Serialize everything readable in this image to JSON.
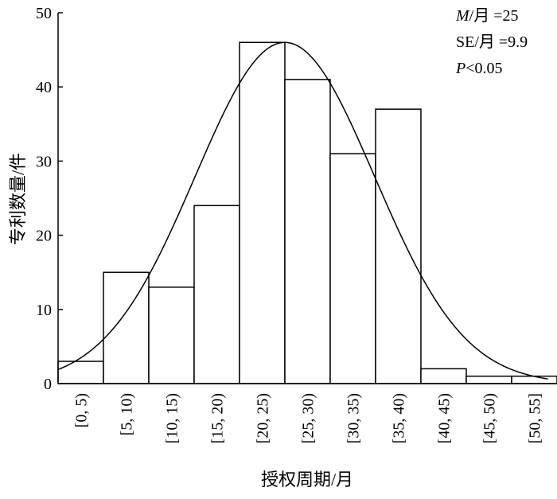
{
  "chart_data": {
    "type": "bar",
    "categories": [
      "[0, 5)",
      "[5, 10)",
      "[10, 15)",
      "[15, 20)",
      "[20, 25)",
      "[25, 30)",
      "[30, 35)",
      "[35, 40)",
      "[40, 45)",
      "[45, 50)",
      "[50, 55]"
    ],
    "values": [
      3,
      15,
      13,
      24,
      46,
      41,
      31,
      37,
      2,
      1,
      1
    ],
    "xlabel": "授权周期/月",
    "ylabel": "专利数量/件",
    "ylim": [
      0,
      50
    ],
    "yticks": [
      0,
      10,
      20,
      30,
      40,
      50
    ],
    "grid": false,
    "legend": "none",
    "overlay": {
      "type": "normal-curve",
      "mean": 25,
      "se": 9.9,
      "peak": 46
    },
    "annotations": [
      {
        "italic": "M",
        "text": "/月 =25"
      },
      {
        "italic": "",
        "text": "SE/月 =9.9"
      },
      {
        "italic": "P",
        "text": "<0.05"
      }
    ]
  }
}
